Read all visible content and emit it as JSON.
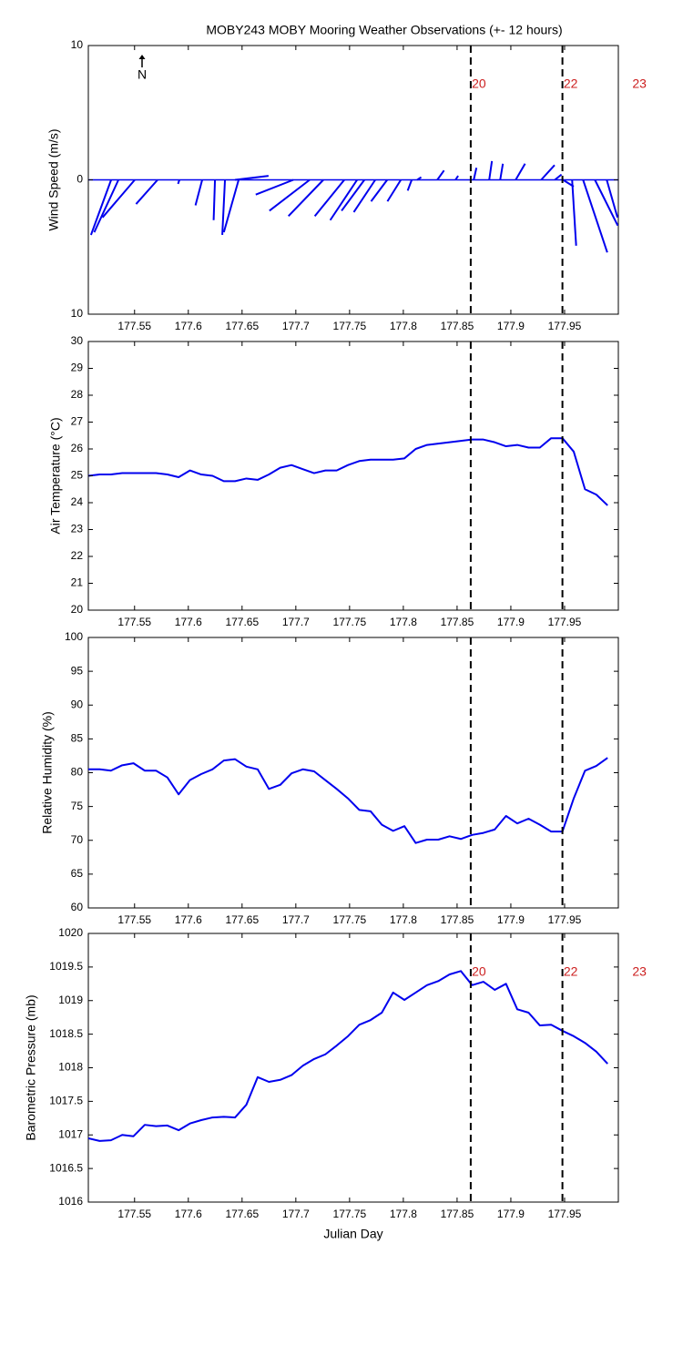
{
  "chart_data": [
    {
      "type": "quiver",
      "title": "MOBY243 MOBY Mooring Weather Observations (+- 12 hours)",
      "ylabel": "Wind Speed (m/s)",
      "north_label": "N",
      "xlim": [
        177.507,
        178.0
      ],
      "xticks": [
        177.55,
        177.6,
        177.65,
        177.7,
        177.75,
        177.8,
        177.85,
        177.9,
        177.95
      ],
      "ylim": [
        -10,
        10
      ],
      "yticks": [
        {
          "value": -10,
          "label": "10"
        },
        0,
        10
      ],
      "color": "#0000ee",
      "vlines": [
        177.8627,
        177.948
      ],
      "annotations": [
        {
          "text": "20",
          "x": 177.8627
        },
        {
          "text": "22",
          "x": 177.948
        },
        {
          "text": "23",
          "x": 178.012
        }
      ],
      "x": [
        177.5282,
        177.535,
        177.5502,
        177.5714,
        177.5917,
        177.6129,
        177.6248,
        177.6341,
        177.6468,
        177.6434,
        177.6977,
        177.7129,
        177.7256,
        177.7451,
        177.757,
        177.7638,
        177.7739,
        177.785,
        177.7977,
        177.8078,
        177.8129,
        177.8316,
        177.8485,
        177.8655,
        177.8799,
        177.8901,
        177.9045,
        177.9282,
        177.9409,
        177.9485,
        177.957,
        177.9672,
        177.9782,
        177.9892
      ],
      "u": [
        -1.5,
        -1.8,
        -2.4,
        -1.6,
        -0.1,
        -0.5,
        -0.1,
        -0.2,
        -1.1,
        2.5,
        -2.8,
        -3.0,
        -2.6,
        -2.2,
        -2.0,
        -1.7,
        -1.6,
        -1.2,
        -1.0,
        -0.3,
        0.3,
        0.5,
        0.2,
        0.2,
        0.2,
        0.2,
        0.7,
        1.0,
        0.5,
        0.8,
        0.3,
        1.8,
        1.7,
        0.8
      ],
      "v": [
        -4.1,
        -3.9,
        -2.8,
        -1.8,
        -0.3,
        -1.9,
        -3.0,
        -4.1,
        -3.9,
        0.3,
        -1.1,
        -2.3,
        -2.7,
        -2.7,
        -3.0,
        -2.3,
        -2.4,
        -1.6,
        -1.6,
        -0.8,
        0.2,
        0.7,
        0.3,
        0.9,
        1.4,
        1.2,
        1.2,
        1.1,
        0.4,
        -0.5,
        -4.9,
        -5.4,
        -3.4,
        -2.8
      ]
    },
    {
      "type": "line",
      "ylabel": "Air Temperature (°C)",
      "xlim": [
        177.507,
        178.0
      ],
      "xticks": [
        177.55,
        177.6,
        177.65,
        177.7,
        177.75,
        177.8,
        177.85,
        177.9,
        177.95
      ],
      "ylim": [
        20,
        30
      ],
      "yticks": [
        20,
        21,
        22,
        23,
        24,
        25,
        26,
        27,
        28,
        29,
        30
      ],
      "color": "#0000ee",
      "vlines": [
        177.8627,
        177.948
      ],
      "x": [
        177.507,
        177.5175,
        177.528,
        177.5385,
        177.549,
        177.5595,
        177.57,
        177.5805,
        177.591,
        177.6015,
        177.612,
        177.6225,
        177.633,
        177.6435,
        177.654,
        177.6645,
        177.675,
        177.6855,
        177.696,
        177.7065,
        177.717,
        177.7275,
        177.738,
        177.7485,
        177.759,
        177.7695,
        177.78,
        177.7905,
        177.801,
        177.8115,
        177.822,
        177.8325,
        177.843,
        177.8535,
        177.864,
        177.8745,
        177.885,
        177.8955,
        177.906,
        177.9165,
        177.927,
        177.9375,
        177.948,
        177.9585,
        177.969,
        177.9795,
        177.99
      ],
      "values": [
        25.0,
        25.05,
        25.05,
        25.1,
        25.1,
        25.1,
        25.1,
        25.05,
        24.95,
        25.2,
        25.05,
        25.0,
        24.8,
        24.8,
        24.9,
        24.85,
        25.05,
        25.3,
        25.4,
        25.25,
        25.1,
        25.2,
        25.2,
        25.4,
        25.55,
        25.6,
        25.6,
        25.6,
        25.65,
        26.0,
        26.15,
        26.2,
        26.25,
        26.3,
        26.35,
        26.35,
        26.25,
        26.1,
        26.15,
        26.05,
        26.05,
        26.4,
        26.4,
        25.9,
        24.5,
        24.3,
        23.9
      ]
    },
    {
      "type": "line",
      "ylabel": "Relative Humidity (%)",
      "xlim": [
        177.507,
        178.0
      ],
      "xticks": [
        177.55,
        177.6,
        177.65,
        177.7,
        177.75,
        177.8,
        177.85,
        177.9,
        177.95
      ],
      "ylim": [
        60,
        100
      ],
      "yticks": [
        60,
        65,
        70,
        75,
        80,
        85,
        90,
        95,
        100
      ],
      "color": "#0000ee",
      "vlines": [
        177.8627,
        177.948
      ],
      "x": [
        177.507,
        177.5175,
        177.528,
        177.5385,
        177.549,
        177.5595,
        177.57,
        177.5805,
        177.591,
        177.6015,
        177.612,
        177.6225,
        177.633,
        177.6435,
        177.654,
        177.6645,
        177.675,
        177.6855,
        177.696,
        177.7065,
        177.717,
        177.7275,
        177.738,
        177.7485,
        177.759,
        177.7695,
        177.78,
        177.7905,
        177.801,
        177.8115,
        177.822,
        177.8325,
        177.843,
        177.8535,
        177.864,
        177.8745,
        177.885,
        177.8955,
        177.906,
        177.9165,
        177.927,
        177.9375,
        177.948,
        177.9585,
        177.969,
        177.9795,
        177.99
      ],
      "values": [
        80.5,
        80.5,
        80.3,
        81.1,
        81.4,
        80.3,
        80.3,
        79.3,
        76.8,
        78.9,
        79.8,
        80.5,
        81.8,
        82.0,
        80.9,
        80.5,
        77.6,
        78.2,
        79.9,
        80.5,
        80.2,
        78.9,
        77.6,
        76.2,
        74.5,
        74.3,
        72.3,
        71.4,
        72.1,
        69.6,
        70.1,
        70.1,
        70.6,
        70.2,
        70.8,
        71.1,
        71.6,
        73.6,
        72.5,
        73.2,
        72.3,
        71.3,
        71.3,
        76.2,
        80.3,
        81.0,
        82.2
      ]
    },
    {
      "type": "line",
      "ylabel": "Barometric Pressure (mb)",
      "xlabel": "Julian Day",
      "xlim": [
        177.507,
        178.0
      ],
      "xticks": [
        177.55,
        177.6,
        177.65,
        177.7,
        177.75,
        177.8,
        177.85,
        177.9,
        177.95
      ],
      "ylim": [
        1016,
        1020
      ],
      "yticks": [
        1016,
        1016.5,
        1017,
        1017.5,
        1018,
        1018.5,
        1019,
        1019.5,
        1020
      ],
      "color": "#0000ee",
      "vlines": [
        177.8627,
        177.948
      ],
      "annotations": [
        {
          "text": "20",
          "x": 177.8627
        },
        {
          "text": "22",
          "x": 177.948
        },
        {
          "text": "23",
          "x": 178.012
        }
      ],
      "x": [
        177.507,
        177.5175,
        177.528,
        177.5385,
        177.549,
        177.5595,
        177.57,
        177.5805,
        177.591,
        177.6015,
        177.612,
        177.6225,
        177.633,
        177.6435,
        177.654,
        177.6645,
        177.675,
        177.6855,
        177.696,
        177.7065,
        177.717,
        177.7275,
        177.738,
        177.7485,
        177.759,
        177.7695,
        177.78,
        177.7905,
        177.801,
        177.8115,
        177.822,
        177.8325,
        177.843,
        177.8535,
        177.864,
        177.8745,
        177.885,
        177.8955,
        177.906,
        177.9165,
        177.927,
        177.9375,
        177.948,
        177.9585,
        177.969,
        177.9795,
        177.99
      ],
      "values": [
        1016.95,
        1016.91,
        1016.92,
        1017.0,
        1016.98,
        1017.15,
        1017.13,
        1017.14,
        1017.07,
        1017.17,
        1017.22,
        1017.26,
        1017.27,
        1017.26,
        1017.45,
        1017.86,
        1017.79,
        1017.82,
        1017.89,
        1018.03,
        1018.13,
        1018.2,
        1018.33,
        1018.47,
        1018.64,
        1018.71,
        1018.82,
        1019.12,
        1019.01,
        1019.12,
        1019.23,
        1019.29,
        1019.39,
        1019.44,
        1019.23,
        1019.28,
        1019.16,
        1019.25,
        1018.87,
        1018.82,
        1018.63,
        1018.64,
        1018.55,
        1018.47,
        1018.37,
        1018.24,
        1018.06
      ]
    }
  ]
}
